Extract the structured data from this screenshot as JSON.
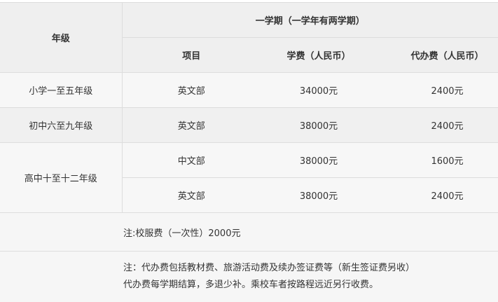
{
  "header": {
    "grade": "年级",
    "semester": "一学期（一学年有两学期）",
    "item": "项目",
    "tuition": "学费（人民币）",
    "agency_fee": "代办费（人民币）"
  },
  "rows": [
    {
      "grade": "小学一至五年级",
      "item": "英文部",
      "tuition": "34000元",
      "agency_fee": "2400元"
    },
    {
      "grade": "初中六至九年级",
      "item": "英文部",
      "tuition": "38000元",
      "agency_fee": "2400元"
    },
    {
      "grade": "高中十至十二年级",
      "item": "中文部",
      "tuition": "38000元",
      "agency_fee": "1600元"
    },
    {
      "grade": "",
      "item": "英文部",
      "tuition": "38000元",
      "agency_fee": "2400元"
    }
  ],
  "notes": {
    "uniform": "注:校服费（一次性）2000元",
    "line1": "注：代办费包括教材费、旅游活动费及续办签证费等（新生签证费另收）",
    "line2": "代办费每学期结算，多退少补。乘校车者按路程远近另行收费。"
  }
}
